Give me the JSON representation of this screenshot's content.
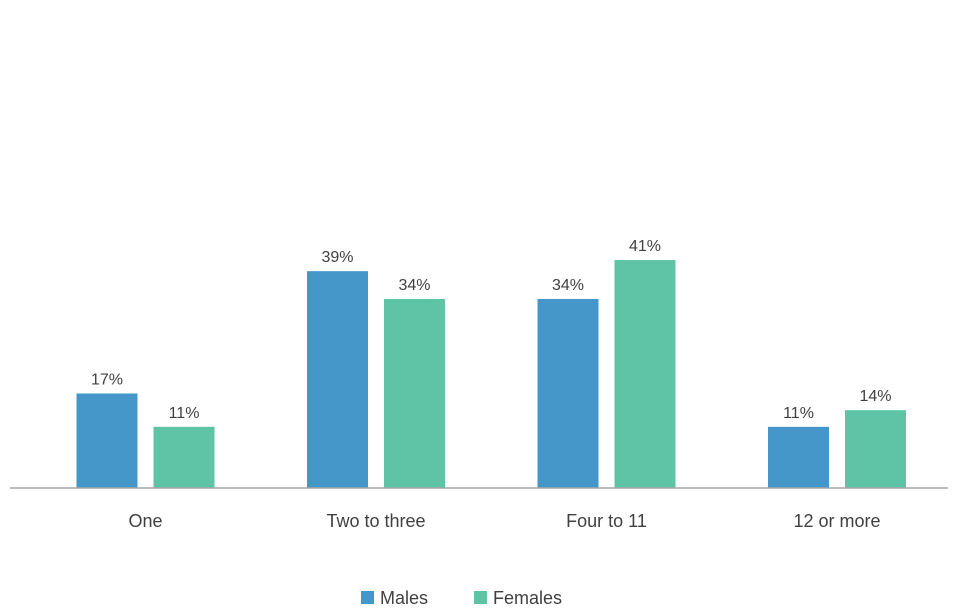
{
  "chart_data": {
    "type": "bar",
    "title": "",
    "xlabel": "",
    "ylabel": "",
    "categories": [
      "One",
      "Two to three",
      "Four to 11",
      "12 or more"
    ],
    "series": [
      {
        "name": "Males",
        "color": "#4697c9",
        "values": [
          17,
          39,
          34,
          11
        ],
        "labels": [
          "17%",
          "39%",
          "34%",
          "11%"
        ]
      },
      {
        "name": "Females",
        "color": "#5ec4a5",
        "values": [
          11,
          34,
          41,
          14
        ],
        "labels": [
          "11%",
          "34%",
          "41%",
          "14%"
        ]
      }
    ],
    "ylim": [
      0,
      45
    ],
    "unit": "%",
    "grid": false,
    "legend": "bottom"
  }
}
